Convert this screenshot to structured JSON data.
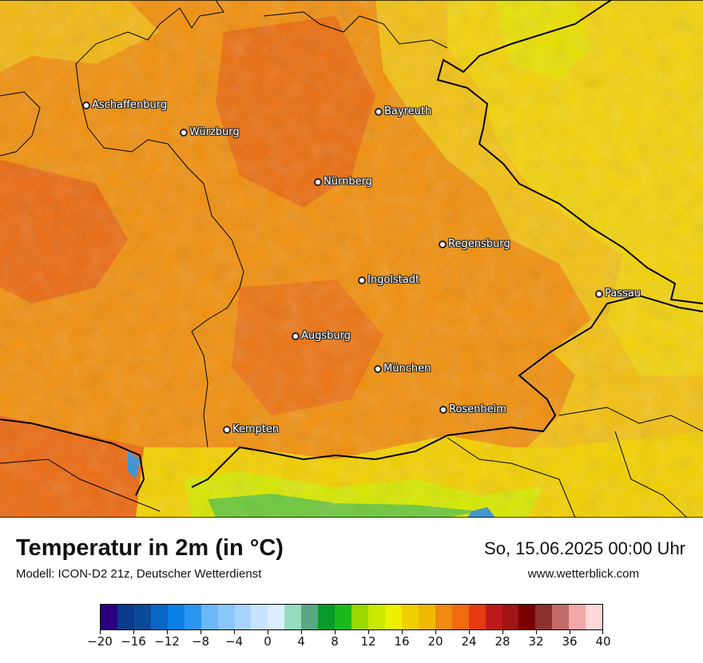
{
  "map": {
    "cities": [
      {
        "name": "Aschaffenburg"
      },
      {
        "name": "Bayreuth"
      },
      {
        "name": "Würzburg"
      },
      {
        "name": "Nürnberg"
      },
      {
        "name": "Regensburg"
      },
      {
        "name": "Ingolstadt"
      },
      {
        "name": "Passau"
      },
      {
        "name": "Augsburg"
      },
      {
        "name": "München"
      },
      {
        "name": "Rosenheim"
      },
      {
        "name": "Kempten"
      }
    ]
  },
  "footer": {
    "title": "Temperatur in 2m (in °C)",
    "model": "Modell: ICON-D2 21z, Deutscher Wetterdienst",
    "datetime": "So, 15.06.2025 00:00 Uhr",
    "website": "www.wetterblick.com"
  },
  "legend": {
    "colors": [
      "#2a0080",
      "#0a3a8c",
      "#0a4a96",
      "#0a66c2",
      "#0a80e6",
      "#2a96f2",
      "#6ab8f8",
      "#8ac6fa",
      "#a8d4fc",
      "#c6e2fe",
      "#dceefe",
      "#96dcc0",
      "#5aa882",
      "#0a9a2a",
      "#1aba1a",
      "#9ad800",
      "#cae800",
      "#eef000",
      "#f0d000",
      "#f0b800",
      "#f08a10",
      "#f06a10",
      "#e83a10",
      "#bc1a1a",
      "#a01414",
      "#7a0000",
      "#8c3030",
      "#c06a6a",
      "#f0a8a8",
      "#fcd8d8"
    ],
    "ticks": [
      "−20",
      "−16",
      "−12",
      "−8",
      "−4",
      "0",
      "4",
      "8",
      "12",
      "16",
      "20",
      "24",
      "28",
      "32",
      "36",
      "40"
    ]
  },
  "colors": {
    "water": "#3a8fd0",
    "border": "#000000"
  }
}
